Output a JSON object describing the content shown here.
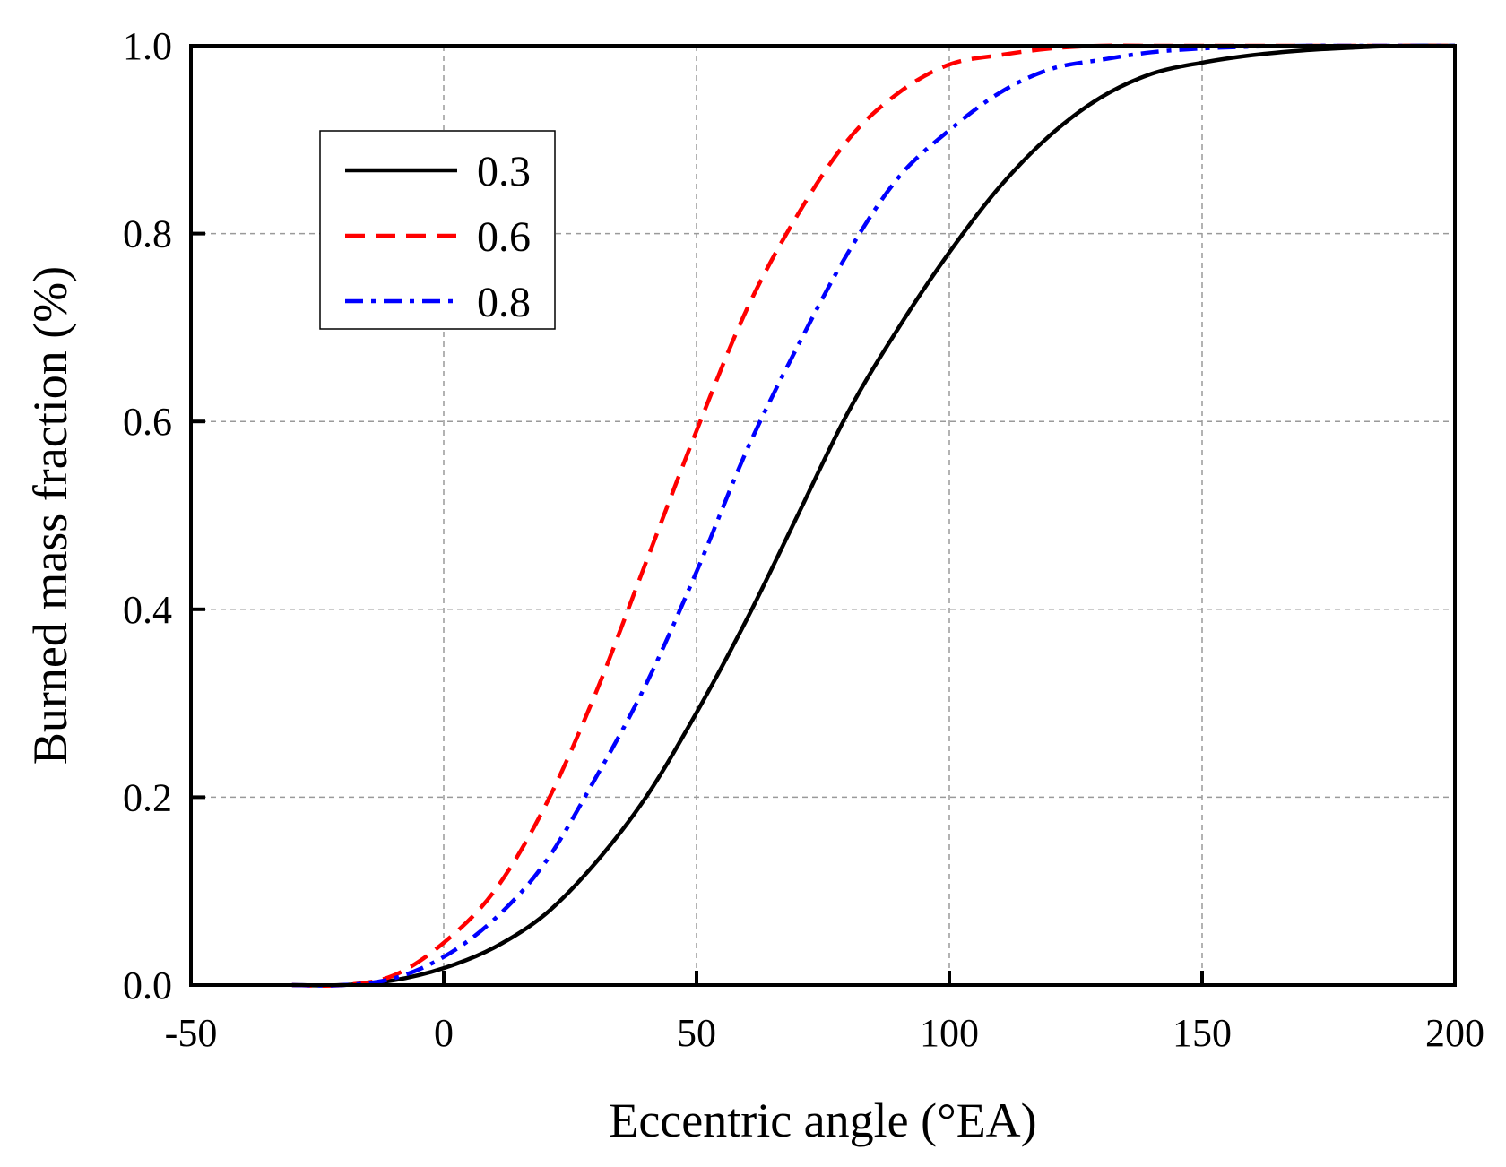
{
  "chart_data": {
    "type": "line",
    "xlabel": "Eccentric angle (°EA)",
    "ylabel": "Burned mass fraction (%)",
    "xlim": [
      -50,
      200
    ],
    "ylim": [
      0,
      1.0
    ],
    "xticks": [
      -50,
      0,
      50,
      100,
      150,
      200
    ],
    "xtick_labels": [
      "-50",
      "0",
      "50",
      "100",
      "150",
      "200"
    ],
    "yticks": [
      0,
      0.2,
      0.4,
      0.6,
      0.8,
      1.0
    ],
    "ytick_labels": [
      "0.0",
      "0.2",
      "0.4",
      "0.6",
      "0.8",
      "1.0"
    ],
    "grid": true,
    "legend_position": "top-left",
    "series": [
      {
        "name": "0.3",
        "color": "#000000",
        "style": "solid",
        "x": [
          -30,
          -20,
          -10,
          0,
          10,
          20,
          30,
          40,
          50,
          60,
          70,
          80,
          90,
          100,
          110,
          120,
          130,
          140,
          150,
          160,
          170,
          180,
          190,
          200
        ],
        "y": [
          0.0,
          0.0,
          0.005,
          0.018,
          0.04,
          0.075,
          0.13,
          0.2,
          0.29,
          0.39,
          0.5,
          0.61,
          0.7,
          0.78,
          0.85,
          0.905,
          0.945,
          0.97,
          0.982,
          0.99,
          0.995,
          0.998,
          1.0,
          1.0
        ]
      },
      {
        "name": "0.6",
        "color": "#ff0000",
        "style": "dashed",
        "x": [
          -30,
          -20,
          -10,
          0,
          10,
          20,
          30,
          40,
          50,
          60,
          70,
          80,
          90,
          100,
          110,
          120,
          130,
          140,
          150,
          160,
          170,
          180,
          190,
          200
        ],
        "y": [
          0.0,
          0.0,
          0.01,
          0.045,
          0.1,
          0.19,
          0.31,
          0.45,
          0.59,
          0.72,
          0.82,
          0.9,
          0.95,
          0.98,
          0.99,
          0.997,
          1.0,
          1.0,
          1.0,
          1.0,
          1.0,
          1.0,
          1.0,
          1.0
        ]
      },
      {
        "name": "0.8",
        "color": "#0000ff",
        "style": "dash-dot",
        "x": [
          -30,
          -20,
          -10,
          0,
          10,
          20,
          30,
          40,
          50,
          60,
          70,
          80,
          90,
          100,
          110,
          120,
          130,
          140,
          150,
          160,
          170,
          180,
          190,
          200
        ],
        "y": [
          0.0,
          0.0,
          0.007,
          0.03,
          0.07,
          0.13,
          0.22,
          0.32,
          0.44,
          0.57,
          0.68,
          0.78,
          0.86,
          0.91,
          0.95,
          0.975,
          0.985,
          0.993,
          0.997,
          0.999,
          1.0,
          1.0,
          1.0,
          1.0
        ]
      }
    ]
  }
}
